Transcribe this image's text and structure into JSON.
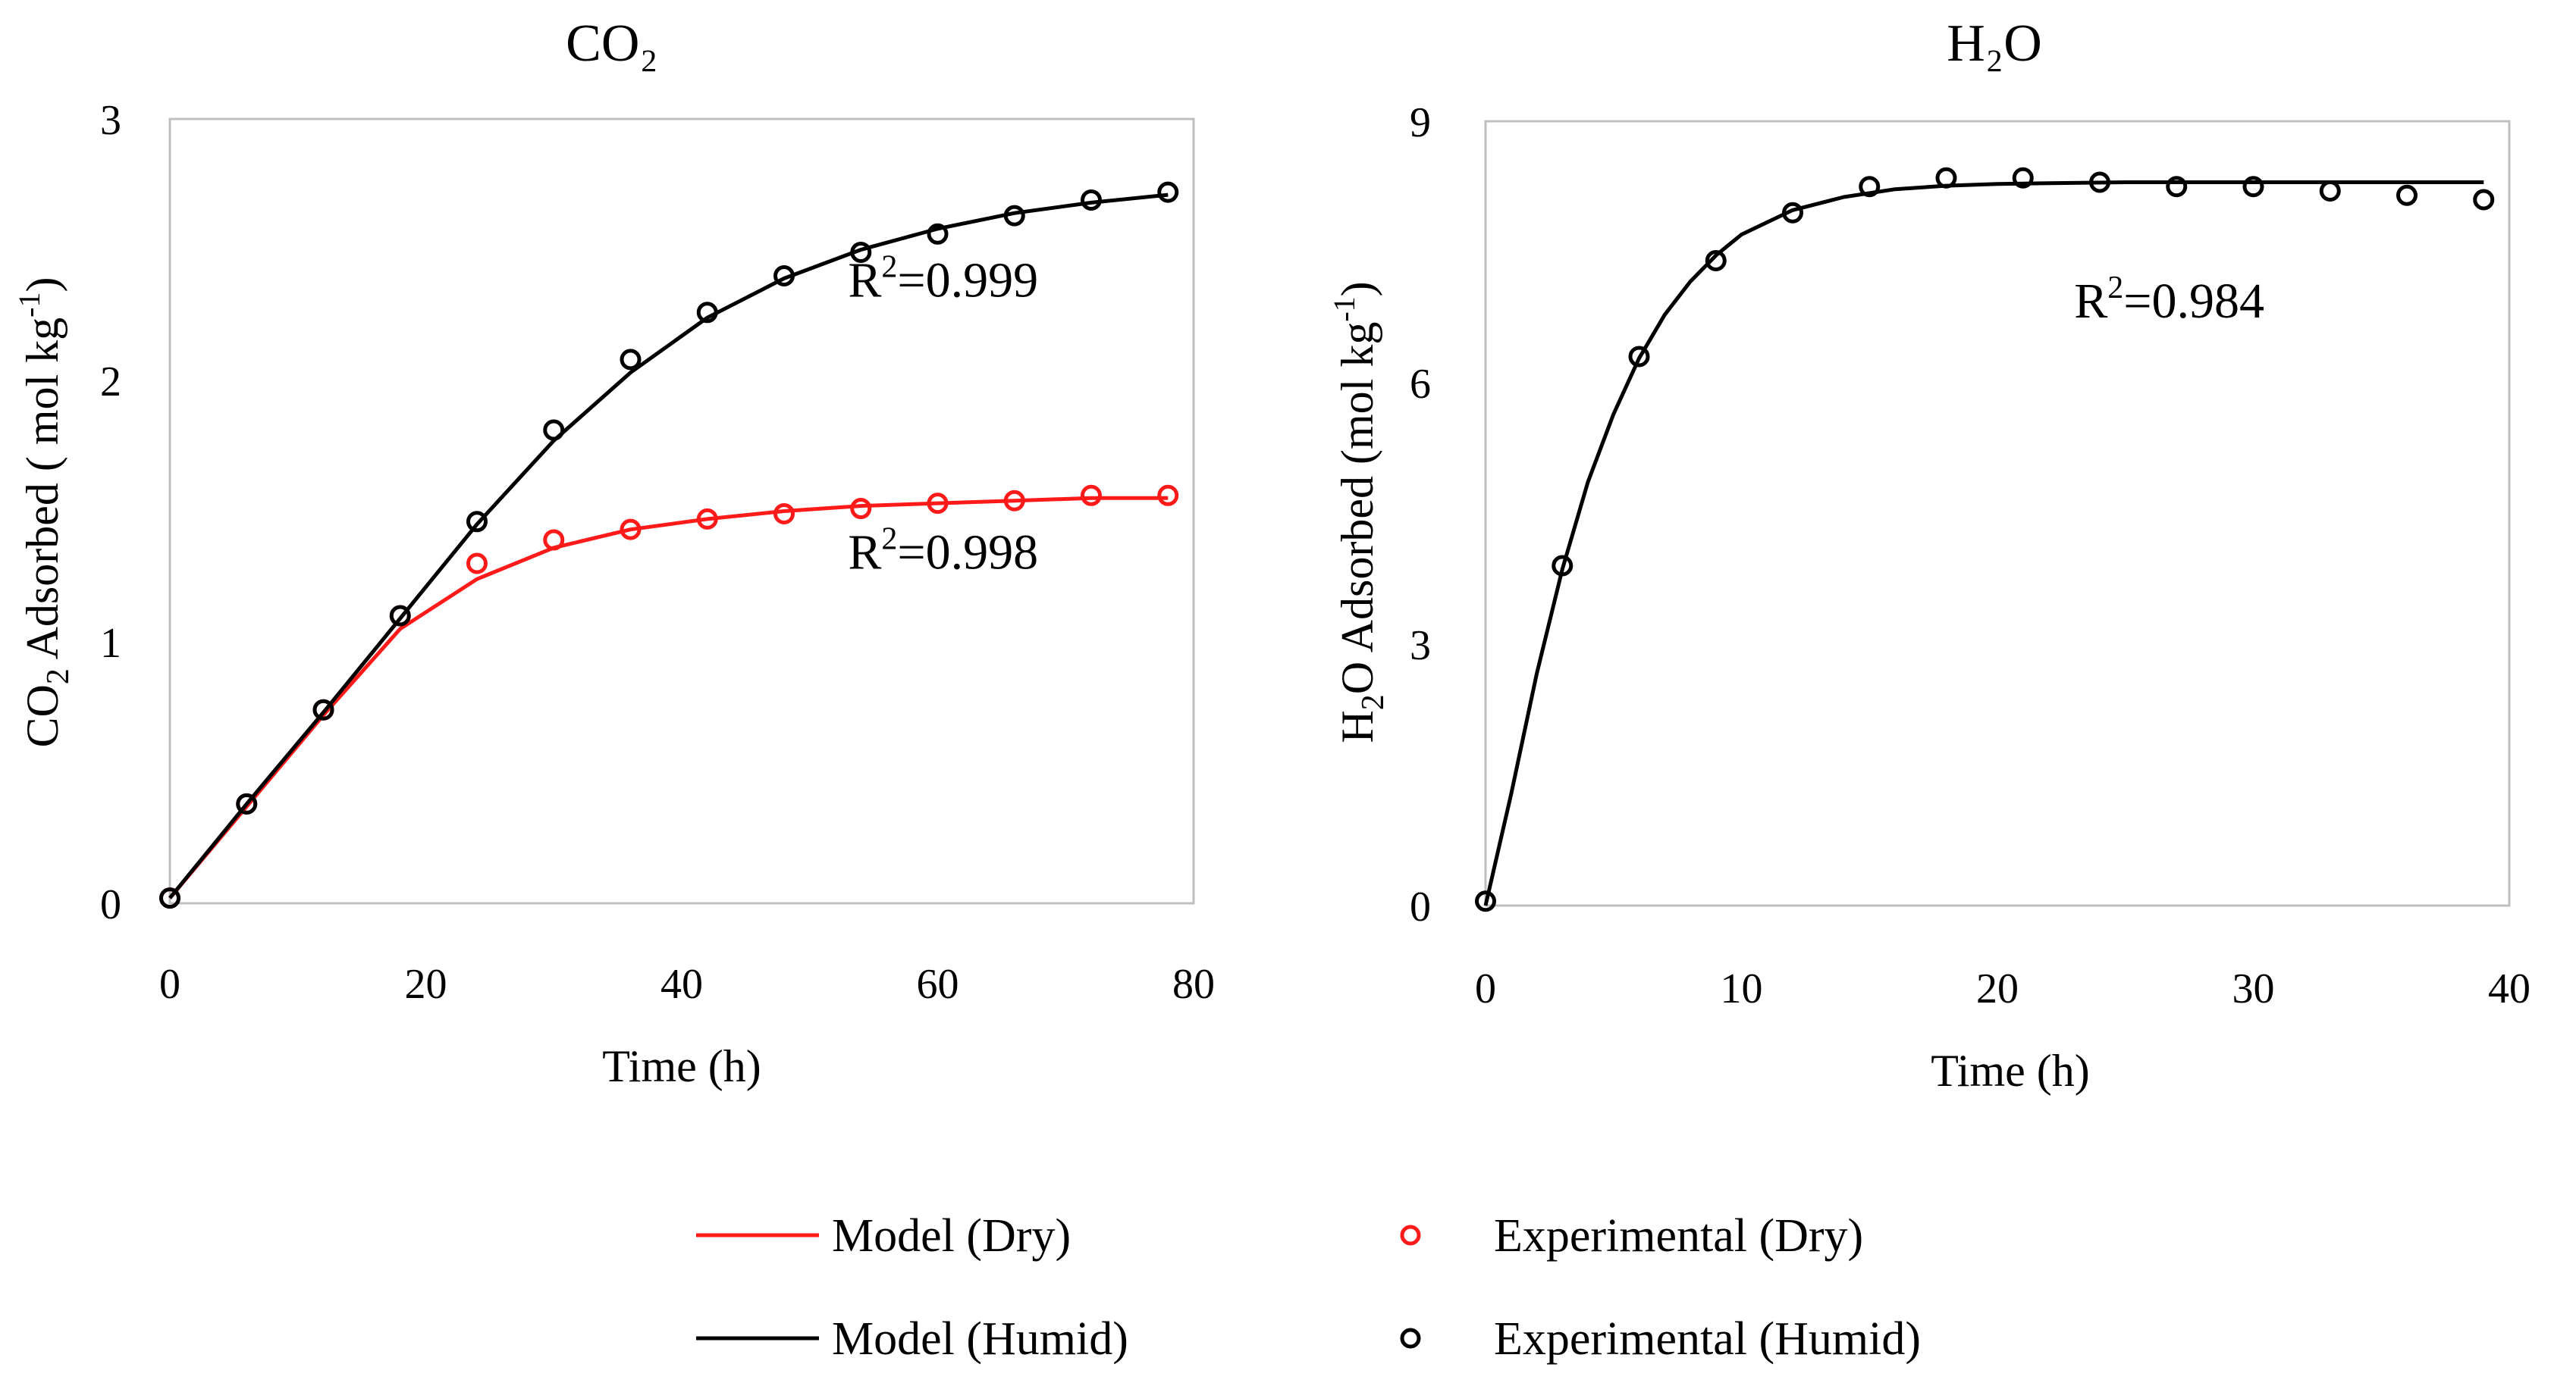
{
  "colors": {
    "dry": "#ff1a1a",
    "humid": "#000000",
    "frame": "#bfbfbf"
  },
  "chart_data": [
    {
      "type": "scatter",
      "title": "CO₂",
      "xlabel": "Time (h)",
      "ylabel_main": "CO",
      "ylabel_sub": "2",
      "ylabel_rest": " Adsorbed ( mol kg",
      "ylabel_sup": "-1",
      "ylabel_end": ")",
      "xlim": [
        0,
        80
      ],
      "ylim": [
        0,
        3
      ],
      "xticks": [
        0,
        20,
        40,
        60,
        80
      ],
      "yticks": [
        0,
        1,
        2,
        3
      ],
      "xtick_labels": [
        "0",
        "20",
        "40",
        "60",
        "80"
      ],
      "ytick_labels": [
        "0",
        "1",
        "2",
        "3"
      ],
      "series": [
        {
          "name": "Experimental (Dry)",
          "kind": "points",
          "color": "#ff1a1a",
          "x": [
            0,
            6,
            12,
            18,
            24,
            30,
            36,
            42,
            48,
            54,
            60,
            66,
            72,
            78
          ],
          "y": [
            0.02,
            0.38,
            0.74,
            1.1,
            1.3,
            1.39,
            1.43,
            1.47,
            1.49,
            1.51,
            1.53,
            1.54,
            1.56,
            1.56
          ]
        },
        {
          "name": "Model (Dry)",
          "kind": "line",
          "color": "#ff1a1a",
          "x": [
            0,
            6,
            12,
            18,
            24,
            30,
            36,
            42,
            48,
            54,
            60,
            66,
            72,
            78
          ],
          "y": [
            0.02,
            0.37,
            0.72,
            1.05,
            1.24,
            1.36,
            1.43,
            1.47,
            1.5,
            1.52,
            1.53,
            1.54,
            1.55,
            1.55
          ]
        },
        {
          "name": "Experimental (Humid)",
          "kind": "points",
          "color": "#000000",
          "x": [
            0,
            6,
            12,
            18,
            24,
            30,
            36,
            42,
            48,
            54,
            60,
            66,
            72,
            78
          ],
          "y": [
            0.02,
            0.38,
            0.74,
            1.1,
            1.46,
            1.81,
            2.08,
            2.26,
            2.4,
            2.49,
            2.56,
            2.63,
            2.69,
            2.72
          ]
        },
        {
          "name": "Model (Humid)",
          "kind": "line",
          "color": "#000000",
          "x": [
            0,
            6,
            12,
            18,
            24,
            30,
            36,
            42,
            48,
            54,
            60,
            66,
            72,
            78
          ],
          "y": [
            0.02,
            0.38,
            0.73,
            1.09,
            1.45,
            1.77,
            2.03,
            2.24,
            2.39,
            2.5,
            2.58,
            2.64,
            2.68,
            2.71
          ]
        }
      ],
      "annotations": [
        {
          "base": "R",
          "sup": "2",
          "rest": "=0.999",
          "x": 53,
          "y": 2.32
        },
        {
          "base": "R",
          "sup": "2",
          "rest": "=0.998",
          "x": 53,
          "y": 1.28
        }
      ]
    },
    {
      "type": "scatter",
      "title": "H₂O",
      "xlabel": "Time (h)",
      "ylabel_main": "H",
      "ylabel_sub": "2",
      "ylabel_rest": "O Adsorbed  (mol kg",
      "ylabel_sup": "-1",
      "ylabel_end": ")",
      "xlim": [
        0,
        40
      ],
      "ylim": [
        0,
        9
      ],
      "xticks": [
        0,
        10,
        20,
        30,
        40
      ],
      "yticks": [
        0,
        3,
        6,
        9
      ],
      "xtick_labels": [
        "0",
        "10",
        "20",
        "30",
        "40"
      ],
      "ytick_labels": [
        "0",
        "3",
        "6",
        "9"
      ],
      "series": [
        {
          "name": "Experimental (Humid)",
          "kind": "points",
          "color": "#000000",
          "x": [
            0,
            3,
            6,
            9,
            12,
            15,
            18,
            21,
            24,
            27,
            30,
            33,
            36,
            39
          ],
          "y": [
            0.05,
            3.9,
            6.3,
            7.4,
            7.95,
            8.25,
            8.35,
            8.35,
            8.3,
            8.25,
            8.25,
            8.2,
            8.15,
            8.1
          ]
        },
        {
          "name": "Model (Humid)",
          "kind": "line",
          "color": "#000000",
          "x": [
            0,
            1,
            2,
            3,
            4,
            5,
            6,
            7,
            8,
            9,
            10,
            12,
            14,
            16,
            18,
            20,
            22,
            25,
            30,
            35,
            39
          ],
          "y": [
            0,
            1.28,
            2.66,
            3.86,
            4.86,
            5.64,
            6.28,
            6.78,
            7.16,
            7.46,
            7.7,
            7.98,
            8.13,
            8.22,
            8.26,
            8.28,
            8.29,
            8.3,
            8.3,
            8.3,
            8.3
          ]
        }
      ],
      "annotations": [
        {
          "base": "R",
          "sup": "2",
          "rest": "=0.984",
          "x": 23,
          "y": 6.75
        }
      ]
    }
  ],
  "legend": {
    "items": [
      {
        "label": "Model (Dry)",
        "kind": "line",
        "color": "#ff1a1a"
      },
      {
        "label": "Experimental (Dry)",
        "kind": "marker",
        "color": "#ff1a1a"
      },
      {
        "label": "Model (Humid)",
        "kind": "line",
        "color": "#000000"
      },
      {
        "label": "Experimental (Humid)",
        "kind": "marker",
        "color": "#000000"
      }
    ]
  }
}
